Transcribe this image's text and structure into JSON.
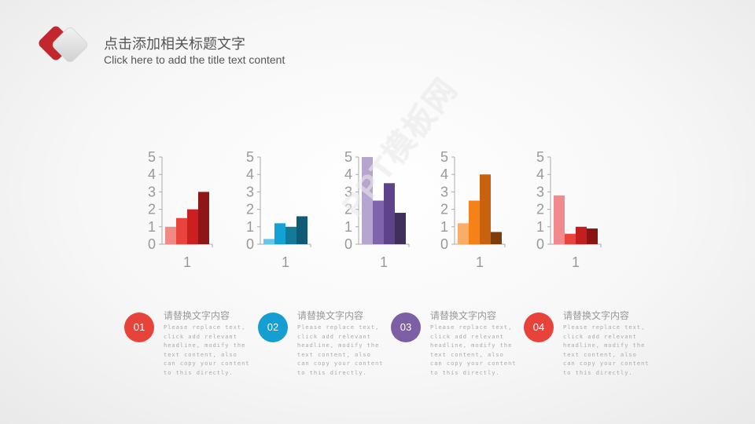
{
  "header": {
    "title_zh": "点击添加相关标题文字",
    "title_en": "Click here to add the title text content"
  },
  "watermark": "PPT模板网",
  "colors": {
    "logo_red": "#c0282d",
    "logo_gray": "#dcdcdc"
  },
  "chart_data": [
    {
      "type": "bar",
      "categories": [
        "1"
      ],
      "yticks": [
        "0",
        "1",
        "2",
        "3",
        "4",
        "5"
      ],
      "ylim": [
        0,
        5
      ],
      "grid": false,
      "series": [
        {
          "values": [
            1.0
          ],
          "color": "#f08a84"
        },
        {
          "values": [
            1.5
          ],
          "color": "#e8443b"
        },
        {
          "values": [
            2.0
          ],
          "color": "#cc1f1f"
        },
        {
          "values": [
            3.0
          ],
          "color": "#8e1616"
        }
      ]
    },
    {
      "type": "bar",
      "categories": [
        "1"
      ],
      "yticks": [
        "0",
        "1",
        "2",
        "3",
        "4",
        "5"
      ],
      "ylim": [
        0,
        5
      ],
      "grid": false,
      "series": [
        {
          "values": [
            0.3
          ],
          "color": "#62c8ea"
        },
        {
          "values": [
            1.2
          ],
          "color": "#12a2d4"
        },
        {
          "values": [
            1.0
          ],
          "color": "#157a9a"
        },
        {
          "values": [
            1.6
          ],
          "color": "#0f5a74"
        }
      ]
    },
    {
      "type": "bar",
      "categories": [
        "1"
      ],
      "yticks": [
        "0",
        "1",
        "2",
        "3",
        "4",
        "5"
      ],
      "ylim": [
        0,
        5
      ],
      "grid": false,
      "series": [
        {
          "values": [
            5.0
          ],
          "color": "#b6a5cf"
        },
        {
          "values": [
            2.5
          ],
          "color": "#8064ab"
        },
        {
          "values": [
            3.5
          ],
          "color": "#5d4389"
        },
        {
          "values": [
            1.8
          ],
          "color": "#3f2f5a"
        }
      ]
    },
    {
      "type": "bar",
      "categories": [
        "1"
      ],
      "yticks": [
        "0",
        "1",
        "2",
        "3",
        "4",
        "5"
      ],
      "ylim": [
        0,
        5
      ],
      "grid": false,
      "series": [
        {
          "values": [
            1.2
          ],
          "color": "#f9ad66"
        },
        {
          "values": [
            2.5
          ],
          "color": "#f58219"
        },
        {
          "values": [
            4.0
          ],
          "color": "#c9620f"
        },
        {
          "values": [
            0.7
          ],
          "color": "#7c3d08"
        }
      ]
    },
    {
      "type": "bar",
      "categories": [
        "1"
      ],
      "yticks": [
        "0",
        "1",
        "2",
        "3",
        "4",
        "5"
      ],
      "ylim": [
        0,
        5
      ],
      "grid": false,
      "series": [
        {
          "values": [
            2.8
          ],
          "color": "#f08a8c"
        },
        {
          "values": [
            0.6
          ],
          "color": "#e8443b"
        },
        {
          "values": [
            1.0
          ],
          "color": "#c41f1f"
        },
        {
          "values": [
            0.9
          ],
          "color": "#8a1414"
        }
      ]
    }
  ],
  "items": [
    {
      "number": "01",
      "color": "#e8433b",
      "title": "请替换文字内容",
      "desc": "Please replace text, click add relevant headline, modify the text content, also can copy your content to this directly."
    },
    {
      "number": "02",
      "color": "#149ed2",
      "title": "请替换文字内容",
      "desc": "Please replace text, click add relevant headline, modify the text content, also can copy your content to this directly."
    },
    {
      "number": "03",
      "color": "#7d5fa6",
      "title": "请替换文字内容",
      "desc": "Please replace text, click add relevant headline, modify the text content, also can copy your content to this directly."
    },
    {
      "number": "04",
      "color": "#e8433b",
      "title": "请替换文字内容",
      "desc": "Please replace text, click add relevant headline, modify the text content, also can copy your content to this directly."
    }
  ]
}
